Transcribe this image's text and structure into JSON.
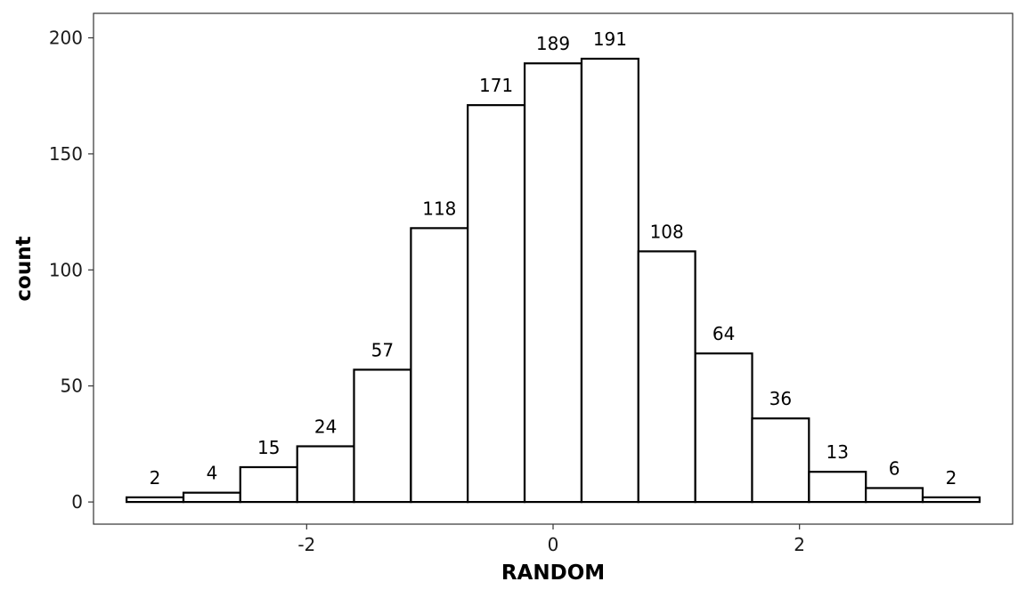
{
  "chart_data": {
    "type": "bar",
    "title": "",
    "xlabel": "RANDOM",
    "ylabel": "count",
    "bin_width": 0.4615,
    "bins": [
      {
        "center": -3.231,
        "count": 2
      },
      {
        "center": -2.769,
        "count": 4
      },
      {
        "center": -2.308,
        "count": 15
      },
      {
        "center": -1.846,
        "count": 24
      },
      {
        "center": -1.385,
        "count": 57
      },
      {
        "center": -0.923,
        "count": 118
      },
      {
        "center": -0.462,
        "count": 171
      },
      {
        "center": 0.0,
        "count": 189
      },
      {
        "center": 0.462,
        "count": 191
      },
      {
        "center": 0.923,
        "count": 108
      },
      {
        "center": 1.385,
        "count": 64
      },
      {
        "center": 1.846,
        "count": 36
      },
      {
        "center": 2.308,
        "count": 13
      },
      {
        "center": 2.769,
        "count": 6
      },
      {
        "center": 3.231,
        "count": 2
      }
    ],
    "x_ticks": [
      {
        "value": -2,
        "label": "-2"
      },
      {
        "value": 0,
        "label": "0"
      },
      {
        "value": 2,
        "label": "2"
      }
    ],
    "y_ticks": [
      {
        "value": 0,
        "label": "0"
      },
      {
        "value": 50,
        "label": "50"
      },
      {
        "value": 100,
        "label": "100"
      },
      {
        "value": 150,
        "label": "150"
      },
      {
        "value": 200,
        "label": "200"
      }
    ],
    "xlim": [
      -3.73,
      3.73
    ],
    "ylim": [
      -9.55,
      210.55
    ],
    "grid": false,
    "legend": "none",
    "colors": {
      "bar_fill": "#ffffff",
      "bar_stroke": "#000000"
    }
  }
}
